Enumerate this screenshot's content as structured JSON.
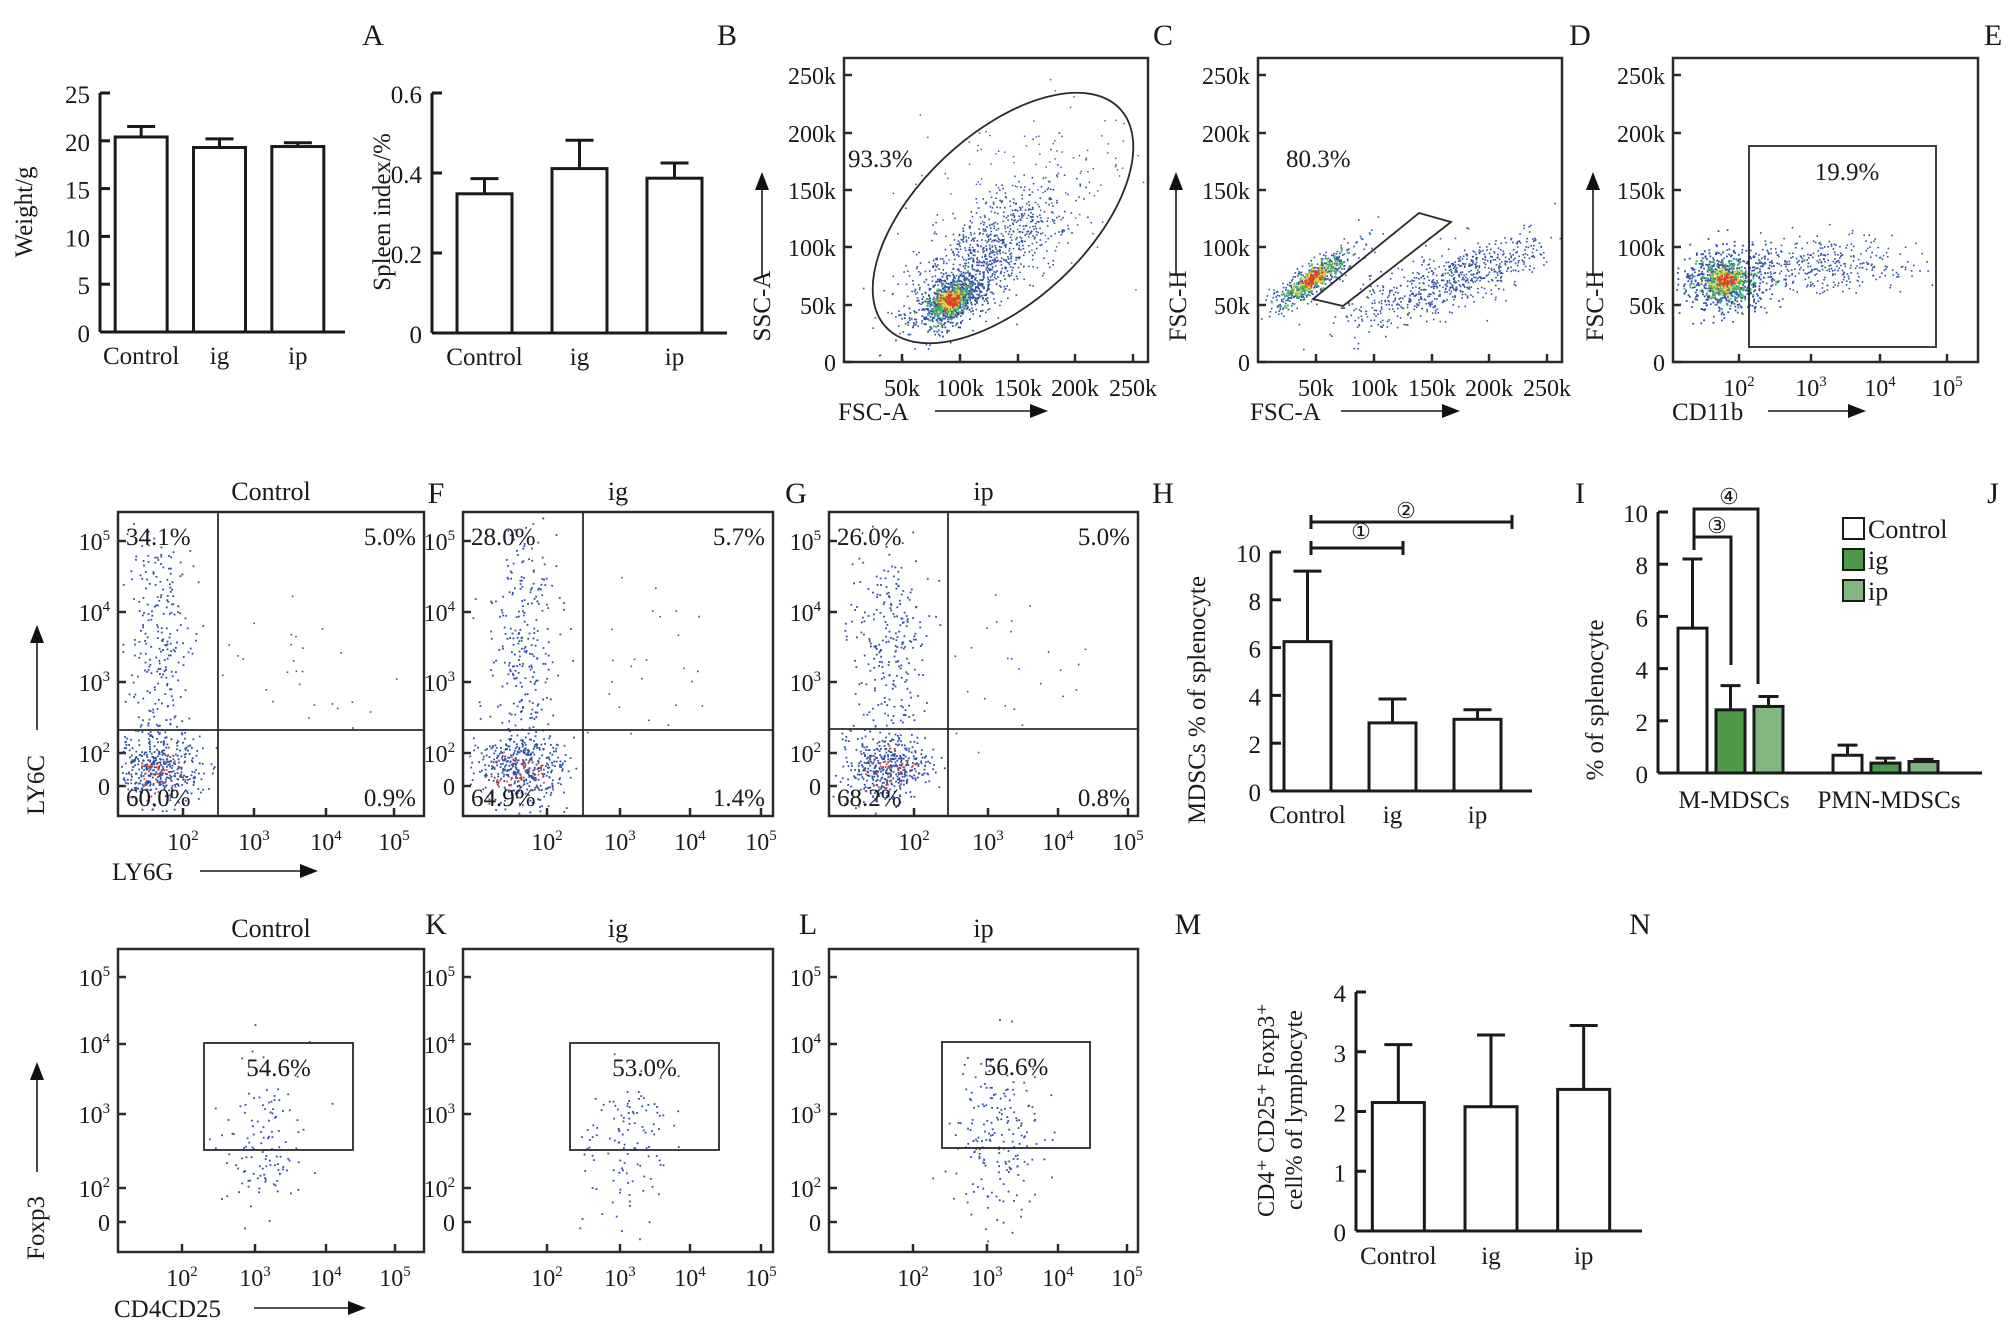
{
  "panel_labels": [
    "A",
    "B",
    "C",
    "D",
    "E",
    "F",
    "G",
    "H",
    "I",
    "J",
    "K",
    "L",
    "M",
    "N"
  ],
  "colors": {
    "control": "#ffffff",
    "ig": "#4f9a4a",
    "ip": "#82b780",
    "dot": "#2d4fa3",
    "hot": "#e0412a",
    "warm": "#e8d23a",
    "mid": "#46b86a"
  },
  "chart_data": [
    {
      "id": "weight",
      "type": "bar",
      "title": "",
      "categories": [
        "Control",
        "ig",
        "ip"
      ],
      "values": [
        20.4,
        19.3,
        19.4
      ],
      "error_upper": [
        21.5,
        20.2,
        19.8
      ],
      "ylabel": "Weight/g",
      "xlabel": "",
      "ylim": [
        0,
        25
      ],
      "yticks": [
        "0",
        "5",
        "10",
        "15",
        "20",
        "25"
      ]
    },
    {
      "id": "spleen",
      "type": "bar",
      "title": "",
      "categories": [
        "Control",
        "ig",
        "ip"
      ],
      "values": [
        0.348,
        0.411,
        0.387
      ],
      "error_upper": [
        0.386,
        0.482,
        0.425
      ],
      "ylabel": "Spleen index/%",
      "xlabel": "",
      "ylim": [
        0,
        0.6
      ],
      "yticks": [
        "0",
        "0.2",
        "0.4",
        "0.6"
      ]
    },
    {
      "id": "fsc-ssc",
      "type": "scatter",
      "title": "",
      "xlabel": "FSC-A",
      "ylabel": "SSC-A",
      "xticks": [
        "50k",
        "100k",
        "150k",
        "200k",
        "250k"
      ],
      "yticks": [
        "0",
        "50k",
        "100k",
        "150k",
        "200k",
        "250k"
      ],
      "gate": "ellipse",
      "gate_percent": "93.3%"
    },
    {
      "id": "singlets",
      "type": "scatter",
      "title": "",
      "xlabel": "FSC-A",
      "ylabel": "FSC-H",
      "xticks": [
        "50k",
        "100k",
        "150k",
        "200k",
        "250k"
      ],
      "yticks": [
        "0",
        "50k",
        "100k",
        "150k",
        "200k",
        "250k"
      ],
      "gate": "parallelogram",
      "gate_percent": "80.3%"
    },
    {
      "id": "cd11b",
      "type": "scatter",
      "title": "",
      "xlabel": "CD11b",
      "ylabel": "FSC-H",
      "xticks": [
        "10^2",
        "10^3",
        "10^4",
        "10^5"
      ],
      "yticks": [
        "0",
        "50k",
        "100k",
        "150k",
        "200k",
        "250k"
      ],
      "gate": "rectangle",
      "gate_percent": "19.9%"
    },
    {
      "id": "ly6-control",
      "type": "scatter",
      "title": "Control",
      "xlabel": "LY6G",
      "ylabel": "LY6C",
      "xticks": [
        "10^2",
        "10^3",
        "10^4",
        "10^5"
      ],
      "yticks": [
        "0",
        "10^2",
        "10^3",
        "10^4",
        "10^5"
      ],
      "quadrants": {
        "ul": "34.1%",
        "ur": "5.0%",
        "ll": "60.0%",
        "lr": "0.9%"
      }
    },
    {
      "id": "ly6-ig",
      "type": "scatter",
      "title": "ig",
      "xlabel": "",
      "ylabel": "",
      "xticks": [
        "10^2",
        "10^3",
        "10^4",
        "10^5"
      ],
      "yticks": [
        "0",
        "10^2",
        "10^3",
        "10^4",
        "10^5"
      ],
      "quadrants": {
        "ul": "28.0%",
        "ur": "5.7%",
        "ll": "64.9%",
        "lr": "1.4%"
      }
    },
    {
      "id": "ly6-ip",
      "type": "scatter",
      "title": "ip",
      "xlabel": "",
      "ylabel": "",
      "xticks": [
        "10^2",
        "10^3",
        "10^4",
        "10^5"
      ],
      "yticks": [
        "0",
        "10^2",
        "10^3",
        "10^4",
        "10^5"
      ],
      "quadrants": {
        "ul": "26.0%",
        "ur": "5.0%",
        "ll": "68.2%",
        "lr": "0.8%"
      }
    },
    {
      "id": "mdsc",
      "type": "bar",
      "title": "",
      "categories": [
        "Control",
        "ig",
        "ip"
      ],
      "values": [
        6.25,
        2.85,
        3.0
      ],
      "error_upper": [
        9.2,
        3.85,
        3.4
      ],
      "ylabel": "MDSCs % of  splenocyte",
      "xlabel": "",
      "ylim": [
        0,
        10
      ],
      "yticks": [
        "0",
        "2",
        "4",
        "6",
        "8",
        "10"
      ],
      "significance": [
        {
          "from": "Control",
          "to": "ig",
          "mark": "①"
        },
        {
          "from": "Control",
          "to": "ip",
          "mark": "②"
        }
      ]
    },
    {
      "id": "mdsc-subsets",
      "type": "bar",
      "title": "",
      "categories": [
        "M-MDSCs",
        "PMN-MDSCs"
      ],
      "series": [
        {
          "name": "Control",
          "values": [
            5.55,
            0.68
          ],
          "error_upper": [
            8.2,
            1.07
          ]
        },
        {
          "name": "ig",
          "values": [
            2.42,
            0.38
          ],
          "error_upper": [
            3.35,
            0.57
          ]
        },
        {
          "name": "ip",
          "values": [
            2.55,
            0.44
          ],
          "error_upper": [
            2.93,
            0.52
          ]
        }
      ],
      "ylabel": "% of splenocyte",
      "xlabel": "",
      "ylim": [
        0,
        10
      ],
      "yticks": [
        "0",
        "2",
        "4",
        "6",
        "8",
        "10"
      ],
      "legend": "top-right",
      "significance": [
        {
          "from": "Control",
          "to": "ig",
          "mark": "③"
        },
        {
          "from": "Control",
          "to": "ip",
          "mark": "④"
        }
      ]
    },
    {
      "id": "foxp3-control",
      "type": "scatter",
      "title": "Control",
      "xlabel": "CD4CD25",
      "ylabel": "Foxp3",
      "xticks": [
        "10^2",
        "10^3",
        "10^4",
        "10^5"
      ],
      "yticks": [
        "0",
        "10^2",
        "10^3",
        "10^4",
        "10^5"
      ],
      "gate": "rectangle",
      "gate_percent": "54.6%"
    },
    {
      "id": "foxp3-ig",
      "type": "scatter",
      "title": "ig",
      "xlabel": "",
      "ylabel": "",
      "xticks": [
        "10^2",
        "10^3",
        "10^4",
        "10^5"
      ],
      "yticks": [
        "0",
        "10^2",
        "10^3",
        "10^4",
        "10^5"
      ],
      "gate": "rectangle",
      "gate_percent": "53.0%"
    },
    {
      "id": "foxp3-ip",
      "type": "scatter",
      "title": "ip",
      "xlabel": "",
      "ylabel": "",
      "xticks": [
        "10^2",
        "10^3",
        "10^4",
        "10^5"
      ],
      "yticks": [
        "0",
        "10^2",
        "10^3",
        "10^4",
        "10^5"
      ],
      "gate": "rectangle",
      "gate_percent": "56.6%"
    },
    {
      "id": "treg",
      "type": "bar",
      "title": "",
      "categories": [
        "Control",
        "ig",
        "ip"
      ],
      "values": [
        2.15,
        2.08,
        2.37
      ],
      "error_upper": [
        3.12,
        3.28,
        3.44
      ],
      "ylabel_line1": "CD4⁺ CD25⁺ Foxp3⁺",
      "ylabel_line2": "cell% of  lymphocyte",
      "xlabel": "",
      "ylim": [
        0,
        4
      ],
      "yticks": [
        "0",
        "1",
        "2",
        "3",
        "4"
      ]
    }
  ]
}
